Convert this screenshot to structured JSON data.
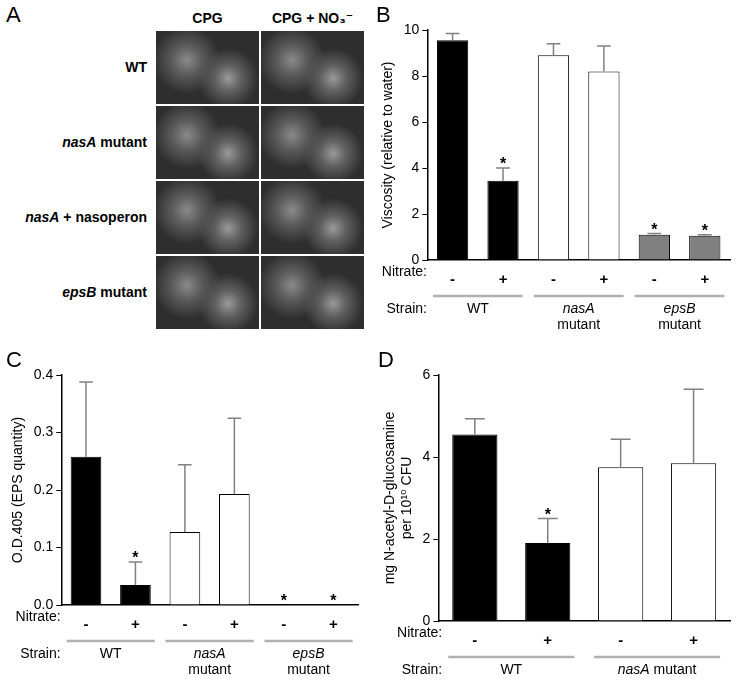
{
  "panel_a": {
    "title": "A",
    "columns": [
      "CPG",
      "CPG + NO₃⁻"
    ],
    "rows": [
      "WT",
      "nasA mutant",
      "nasA + nasoperon",
      "epsB mutant"
    ]
  },
  "chart_data": [
    {
      "type": "bar",
      "title": "B",
      "y_label": "Viscosity (relative to water)",
      "categories": [
        "-",
        "+",
        "-",
        "+",
        "-",
        "+"
      ],
      "category_row_label": "Nitrate:",
      "groups": [
        [
          "WT"
        ],
        [
          "nasA",
          "mutant"
        ],
        [
          "epsB",
          "mutant"
        ]
      ],
      "group_row_label": "Strain:",
      "values": [
        9.55,
        3.45,
        8.9,
        8.2,
        1.1,
        1.05
      ],
      "errors": [
        0.3,
        0.55,
        0.5,
        1.1,
        0.05,
        0.05
      ],
      "colors": [
        "#000000",
        "#000000",
        "#ffffff",
        "#ffffff",
        "#808080",
        "#808080"
      ],
      "significance": [
        null,
        "*",
        null,
        null,
        "*",
        "*"
      ],
      "ylim": [
        0,
        10
      ],
      "yticks": [
        0,
        2,
        4,
        6,
        8,
        10
      ],
      "grid": false
    },
    {
      "type": "bar",
      "title": "C",
      "y_label": "O.D.405 (EPS quantity)",
      "categories": [
        "-",
        "+",
        "-",
        "+",
        "-",
        "+"
      ],
      "category_row_label": "Nitrate:",
      "groups": [
        [
          "WT"
        ],
        [
          "nasA",
          "mutant"
        ],
        [
          "epsB",
          "mutant"
        ]
      ],
      "group_row_label": "Strain:",
      "values": [
        0.258,
        0.035,
        0.127,
        0.193,
        0,
        0
      ],
      "errors": [
        0.13,
        0.04,
        0.117,
        0.132,
        0,
        0
      ],
      "colors": [
        "#000000",
        "#000000",
        "#ffffff",
        "#ffffff",
        "#808080",
        "#808080"
      ],
      "significance": [
        null,
        "*",
        null,
        null,
        "*",
        "*"
      ],
      "ylim": [
        0,
        0.4
      ],
      "yticks": [
        {
          "value": 0,
          "label": "0.0"
        },
        0.1,
        0.2,
        0.3,
        0.4
      ],
      "grid": false
    },
    {
      "type": "bar",
      "title": "D",
      "y_label": [
        "mg N-acetyl-D-glucosamine",
        "per 10¹⁰ CFU"
      ],
      "categories": [
        "-",
        "+",
        "-",
        "+"
      ],
      "category_row_label": "Nitrate:",
      "groups": [
        [
          "WT"
        ],
        [
          "nasA mutant"
        ]
      ],
      "group_row_label": "Strain:",
      "values": [
        4.55,
        1.9,
        3.75,
        3.85
      ],
      "errors": [
        0.38,
        0.6,
        0.68,
        1.8
      ],
      "colors": [
        "#000000",
        "#000000",
        "#ffffff",
        "#ffffff"
      ],
      "significance": [
        null,
        "*",
        null,
        null
      ],
      "ylim": [
        0,
        6
      ],
      "yticks": [
        0,
        2,
        4,
        6
      ],
      "grid": false
    }
  ]
}
